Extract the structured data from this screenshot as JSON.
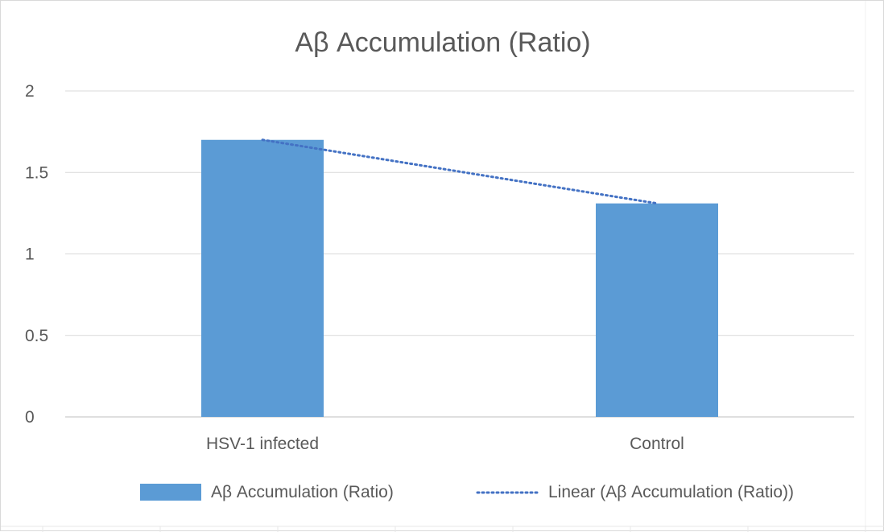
{
  "chart_data": {
    "type": "bar",
    "title": "Aβ Accumulation (Ratio)",
    "categories": [
      "HSV-1 infected",
      "Control"
    ],
    "series": [
      {
        "name": "Aβ Accumulation (Ratio)",
        "values": [
          1.7,
          1.31
        ],
        "color": "#5b9bd5"
      }
    ],
    "trendline": {
      "name": "Linear (Aβ Accumulation (Ratio))",
      "type": "linear",
      "start": 1.7,
      "end": 1.31,
      "color": "#4472c4",
      "style": "dotted"
    },
    "ylim": [
      0,
      2
    ],
    "yticks": [
      0,
      0.5,
      1,
      1.5,
      2
    ],
    "ytick_labels": [
      "0",
      "0.5",
      "1",
      "1.5",
      "2"
    ],
    "xlabel": "",
    "ylabel": "",
    "grid": true,
    "legend_position": "bottom"
  }
}
